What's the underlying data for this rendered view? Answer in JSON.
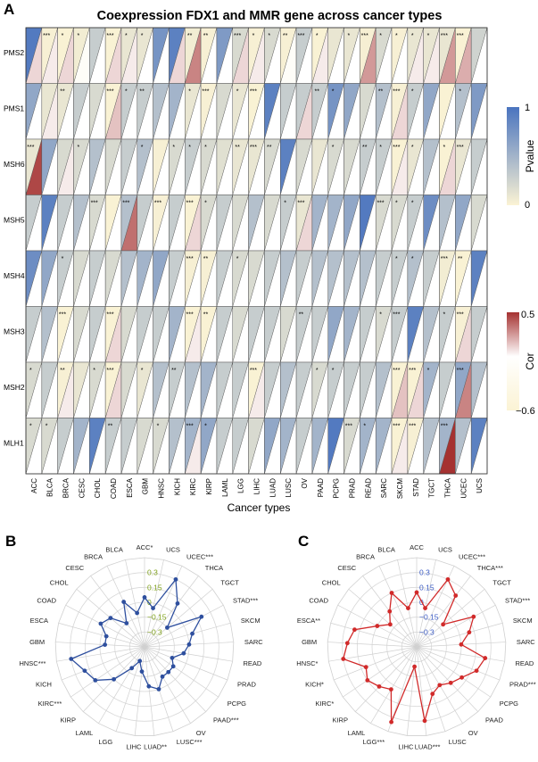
{
  "panel_labels": {
    "a": "A",
    "b": "B",
    "c": "C"
  },
  "heatmap": {
    "title": "Coexpression FDX1 and MMR gene across cancer types",
    "xlabel": "Cancer types",
    "genes": [
      "PMS2",
      "PMS1",
      "MSH6",
      "MSH5",
      "MSH4",
      "MSH3",
      "MSH2",
      "MLH1"
    ],
    "cancers": [
      "ACC",
      "BLCA",
      "BRCA",
      "CESC",
      "CHOL",
      "COAD",
      "ESCA",
      "GBM",
      "HNSC",
      "KICH",
      "KIRC",
      "KIRP",
      "LAML",
      "LGG",
      "LIHC",
      "LUAD",
      "LUSC",
      "OV",
      "PAAD",
      "PCPG",
      "PRAD",
      "READ",
      "SARC",
      "SKCM",
      "STAD",
      "TGCT",
      "THCA",
      "UCEC",
      "UCS"
    ],
    "legend_p": {
      "title": "Pvalue",
      "max_label": "1",
      "min_label": "0",
      "low_color": "#fbf3d4",
      "high_color": "#4a74bf"
    },
    "legend_cor": {
      "title": "Cor",
      "max_label": "0.5",
      "min_label": "−0.6",
      "low_color": "#fbf3d4",
      "mid_color": "#ffffff",
      "high_color": "#a53231"
    }
  },
  "chart_data": [
    {
      "type": "heatmap",
      "title": "Coexpression FDX1 and MMR gene across cancer types",
      "xlabel": "Cancer types",
      "rows": [
        "PMS2",
        "PMS1",
        "MSH6",
        "MSH5",
        "MSH4",
        "MSH3",
        "MSH2",
        "MLH1"
      ],
      "columns": [
        "ACC",
        "BLCA",
        "BRCA",
        "CESC",
        "CHOL",
        "COAD",
        "ESCA",
        "GBM",
        "HNSC",
        "KICH",
        "KIRC",
        "KIRP",
        "LAML",
        "LGG",
        "LIHC",
        "LUAD",
        "LUSC",
        "OV",
        "PAAD",
        "PCPG",
        "PRAD",
        "READ",
        "SARC",
        "SKCM",
        "STAD",
        "TGCT",
        "THCA",
        "UCEC",
        "UCS"
      ],
      "pvalue_range": [
        0,
        1
      ],
      "cor_range": [
        -0.6,
        0.5
      ],
      "pvalue": [
        [
          0.95,
          0.02,
          0.01,
          0.05,
          0.3,
          0.01,
          0.1,
          0.1,
          0.75,
          0.9,
          0.05,
          0.02,
          0.7,
          0.2,
          0.02,
          0.2,
          0.02,
          0.3,
          0.01,
          0.1,
          0.1,
          0.03,
          0.2,
          0.02,
          0.1,
          0.1,
          0.1,
          0.01,
          0.25
        ],
        [
          0.6,
          0.1,
          0.1,
          0.3,
          0.2,
          0.01,
          0.3,
          0.3,
          0.4,
          0.5,
          0.1,
          0.02,
          0.2,
          0.1,
          0.01,
          0.9,
          0.3,
          0.3,
          0.3,
          0.75,
          0.6,
          0.2,
          0.4,
          0.02,
          0.3,
          0.6,
          0.01,
          0.4,
          0.7
        ],
        [
          0.1,
          0.6,
          0.2,
          0.2,
          0.4,
          0.2,
          0.3,
          0.4,
          0.02,
          0.2,
          0.3,
          0.2,
          0.15,
          0.1,
          0.1,
          0.2,
          0.9,
          0.2,
          0.1,
          0.2,
          0.2,
          0.3,
          0.3,
          0.01,
          0.1,
          0.4,
          0.01,
          0.1,
          0.3
        ],
        [
          0.3,
          0.9,
          0.3,
          0.4,
          0.2,
          0.01,
          0.4,
          0.3,
          0.02,
          0.3,
          0.01,
          0.2,
          0.3,
          0.2,
          0.4,
          0.2,
          0.3,
          0.1,
          0.5,
          0.5,
          0.6,
          0.95,
          0.2,
          0.2,
          0.3,
          0.8,
          0.4,
          0.6,
          0.2
        ],
        [
          0.8,
          0.6,
          0.3,
          0.2,
          0.3,
          0.2,
          0.4,
          0.5,
          0.6,
          0.3,
          0.03,
          0.02,
          0.3,
          0.2,
          0.2,
          0.3,
          0.4,
          0.3,
          0.4,
          0.4,
          0.4,
          0.4,
          0.3,
          0.3,
          0.4,
          0.3,
          0.05,
          0.01,
          0.9
        ],
        [
          0.3,
          0.4,
          0.01,
          0.2,
          0.3,
          0.01,
          0.2,
          0.3,
          0.3,
          0.5,
          0.01,
          0.01,
          0.3,
          0.2,
          0.3,
          0.3,
          0.2,
          0.3,
          0.3,
          0.6,
          0.5,
          0.3,
          0.2,
          0.3,
          0.9,
          0.4,
          0.3,
          0.02,
          0.3
        ],
        [
          0.2,
          0.3,
          0.02,
          0.1,
          0.2,
          0.01,
          0.2,
          0.1,
          0.4,
          0.3,
          0.4,
          0.5,
          0.3,
          0.3,
          0.01,
          0.3,
          0.4,
          0.3,
          0.2,
          0.3,
          0.3,
          0.3,
          0.4,
          0.01,
          0.01,
          0.5,
          0.3,
          0.6,
          0.4
        ],
        [
          0.2,
          0.2,
          0.3,
          0.5,
          0.9,
          0.3,
          0.3,
          0.2,
          0.2,
          0.4,
          0.5,
          0.6,
          0.3,
          0.3,
          0.2,
          0.6,
          0.5,
          0.3,
          0.5,
          0.95,
          0.2,
          0.5,
          0.5,
          0.01,
          0.02,
          0.4,
          0.5,
          0.4,
          0.9
        ]
      ],
      "cor": [
        [
          0.1,
          0.05,
          0.1,
          -0.1,
          0.0,
          0.1,
          0.05,
          0.0,
          0.0,
          0.1,
          0.3,
          0.0,
          0.0,
          0.1,
          0.05,
          0.0,
          -0.1,
          0.0,
          0.05,
          0.0,
          0.0,
          0.25,
          0.0,
          0.0,
          0.05,
          0.05,
          0.25,
          0.2,
          0.0
        ],
        [
          0.0,
          0.05,
          0.0,
          0.0,
          0.0,
          0.15,
          0.0,
          0.0,
          0.0,
          0.0,
          0.0,
          0.0,
          0.0,
          0.0,
          0.0,
          0.0,
          0.0,
          0.1,
          0.0,
          0.0,
          0.0,
          0.0,
          0.0,
          0.1,
          0.0,
          0.0,
          0.0,
          0.0,
          0.0
        ],
        [
          0.45,
          0.0,
          0.05,
          0.0,
          0.0,
          0.0,
          0.0,
          0.0,
          0.0,
          0.0,
          0.0,
          0.0,
          0.0,
          0.0,
          0.0,
          0.0,
          0.0,
          0.0,
          0.0,
          0.0,
          0.0,
          0.0,
          0.0,
          0.05,
          0.0,
          0.0,
          0.1,
          0.0,
          0.0
        ],
        [
          0.0,
          0.0,
          0.0,
          0.0,
          0.0,
          0.0,
          0.35,
          0.0,
          0.0,
          0.0,
          0.1,
          0.0,
          0.0,
          0.0,
          0.0,
          0.0,
          0.0,
          0.1,
          0.0,
          0.0,
          0.0,
          0.0,
          0.0,
          0.0,
          0.0,
          0.0,
          0.0,
          0.0,
          0.0
        ],
        [
          0.0,
          0.0,
          0.0,
          0.0,
          0.0,
          0.0,
          0.0,
          0.0,
          0.0,
          0.0,
          0.0,
          0.0,
          0.0,
          0.0,
          0.0,
          0.0,
          0.0,
          0.0,
          0.0,
          0.0,
          0.0,
          0.0,
          0.0,
          0.0,
          0.0,
          0.0,
          0.0,
          0.0,
          0.0
        ],
        [
          0.0,
          0.0,
          0.0,
          0.0,
          0.0,
          0.1,
          0.0,
          0.0,
          0.0,
          0.0,
          0.05,
          0.0,
          0.0,
          0.0,
          0.0,
          0.0,
          0.0,
          0.0,
          0.0,
          0.0,
          0.0,
          0.0,
          0.0,
          0.0,
          0.0,
          0.0,
          0.0,
          0.1,
          0.0
        ],
        [
          0.0,
          0.0,
          0.05,
          0.0,
          0.0,
          0.1,
          0.0,
          0.0,
          0.0,
          0.0,
          0.0,
          0.0,
          0.0,
          0.0,
          0.05,
          0.0,
          0.0,
          0.0,
          0.0,
          0.0,
          0.0,
          0.0,
          0.0,
          0.15,
          0.1,
          0.0,
          0.0,
          0.3,
          0.0
        ],
        [
          0.0,
          0.0,
          0.0,
          0.0,
          0.0,
          0.0,
          0.0,
          0.0,
          0.0,
          0.0,
          0.05,
          0.0,
          0.0,
          0.0,
          0.0,
          0.0,
          0.0,
          0.0,
          0.0,
          0.0,
          0.0,
          0.0,
          0.0,
          0.05,
          0.0,
          0.0,
          0.5,
          0.0,
          0.0
        ]
      ],
      "stars": [
        [
          "",
          "***",
          "*",
          "*",
          "",
          "***",
          "*",
          "*",
          "",
          "",
          "**",
          "**",
          "",
          "***",
          "*",
          "*",
          "**",
          "***",
          "*",
          "",
          "*",
          "***",
          "*",
          "*",
          "*",
          "*",
          "***",
          "***",
          ""
        ],
        [
          "",
          "",
          "**",
          "",
          "",
          "***",
          "*",
          "**",
          "",
          "",
          "*",
          "***",
          "",
          "*",
          "***",
          "",
          "",
          "",
          "**",
          "*",
          "",
          "",
          "**",
          "***",
          "*",
          "",
          "",
          "*",
          ""
        ],
        [
          "***",
          "",
          "",
          "*",
          "",
          "",
          "",
          "*",
          "",
          "*",
          "*",
          "*",
          "",
          "**",
          "***",
          "**",
          "",
          "",
          "",
          "*",
          "",
          "**",
          "*",
          "***",
          "*",
          "",
          "*",
          "***",
          ""
        ],
        [
          "",
          "",
          "",
          "",
          "***",
          "",
          "***",
          "",
          "***",
          "",
          "***",
          "*",
          "",
          "",
          "",
          "",
          "*",
          "***",
          "",
          "",
          "",
          "",
          "***",
          "*",
          "*",
          "",
          "",
          "",
          ""
        ],
        [
          "",
          "",
          "*",
          "",
          "",
          "",
          "",
          "",
          "",
          "",
          "***",
          "**",
          "",
          "*",
          "",
          "",
          "",
          "",
          "",
          "",
          "",
          "",
          "",
          "*",
          "*",
          "",
          "***",
          "**",
          ""
        ],
        [
          "",
          "",
          "***",
          "",
          "",
          "***",
          "",
          "",
          "",
          "",
          "***",
          "**",
          "",
          "",
          "",
          "",
          "",
          "**",
          "",
          "",
          "",
          "",
          "*",
          "***",
          "",
          "",
          "*",
          "***",
          ""
        ],
        [
          "*",
          "",
          "**",
          "",
          "*",
          "***",
          "",
          "*",
          "",
          "**",
          "",
          "",
          "",
          "",
          "***",
          "",
          "",
          "",
          "*",
          "*",
          "",
          "",
          "",
          "***",
          "***",
          "*",
          "",
          "***",
          ""
        ],
        [
          "*",
          "*",
          "",
          "",
          "",
          "**",
          "",
          "",
          "*",
          "",
          "***",
          "*",
          "",
          "",
          "",
          "",
          "",
          "",
          "",
          "",
          "***",
          "*",
          "",
          "***",
          "***",
          "",
          "***",
          "",
          ""
        ]
      ]
    },
    {
      "type": "radar",
      "panel": "B",
      "axes": [
        "ACC*",
        "UCS",
        "UCEC***",
        "THCA",
        "TGCT",
        "STAD***",
        "SKCM",
        "SARC",
        "READ",
        "PRAD",
        "PCPG",
        "PAAD***",
        "OV",
        "LUSC***",
        "LUAD**",
        "LIHC",
        "LGG",
        "LAML",
        "KIRP",
        "KIRC***",
        "KICH",
        "HNSC***",
        "GBM",
        "ESCA",
        "COAD",
        "CHOL",
        "CESC",
        "BRCA",
        "BLCA"
      ],
      "rlim": [
        -0.45,
        0.45
      ],
      "ticks": [
        -0.3,
        -0.15,
        0,
        0.15,
        0.3
      ],
      "tick_labels": [
        "−0.3",
        "−0.15",
        "0",
        "0.15",
        "0.3"
      ],
      "series": [
        {
          "name": "Cor",
          "color": "#2e4f9e",
          "values": [
            0.05,
            -0.05,
            0.3,
            0.1,
            -0.15,
            0.2,
            0.05,
            0.0,
            -0.05,
            -0.15,
            -0.1,
            -0.1,
            -0.1,
            0.0,
            -0.05,
            -0.2,
            -0.3,
            -0.2,
            0.0,
            0.15,
            0.2,
            0.3,
            -0.05,
            -0.05,
            0.05,
            0.0,
            -0.15,
            0.05,
            -0.1
          ]
        }
      ]
    },
    {
      "type": "radar",
      "panel": "C",
      "axes": [
        "ACC",
        "UCS",
        "UCEC***",
        "THCA***",
        "TGCT",
        "STAD***",
        "SKCM",
        "SARC",
        "READ",
        "PRAD***",
        "PCPG",
        "PAAD",
        "OV",
        "LUSC",
        "LUAD***",
        "LIHC",
        "LGG***",
        "LAML",
        "KIRP",
        "KIRC*",
        "KICH*",
        "HNSC*",
        "GBM",
        "ESCA**",
        "COAD",
        "CHOL",
        "CESC",
        "BRCA",
        "BLCA"
      ],
      "rlim": [
        -0.45,
        0.45
      ],
      "ticks": [
        -0.3,
        -0.15,
        0,
        0.15,
        0.3
      ],
      "tick_labels": [
        "−0.3",
        "−0.15",
        "0",
        "0.15",
        "0.3"
      ],
      "series": [
        {
          "name": "Cor",
          "color": "#d12a2a",
          "values": [
            0.1,
            -0.05,
            0.3,
            0.2,
            -0.1,
            0.2,
            0.1,
            0.0,
            0.25,
            0.2,
            0.1,
            0.05,
            0.0,
            0.05,
            0.3,
            -0.25,
            0.35,
            0.05,
            0.1,
            0.15,
            0.1,
            0.3,
            0.25,
            0.2,
            0.0,
            -0.1,
            0.0,
            0.15,
            -0.05
          ]
        }
      ]
    }
  ]
}
